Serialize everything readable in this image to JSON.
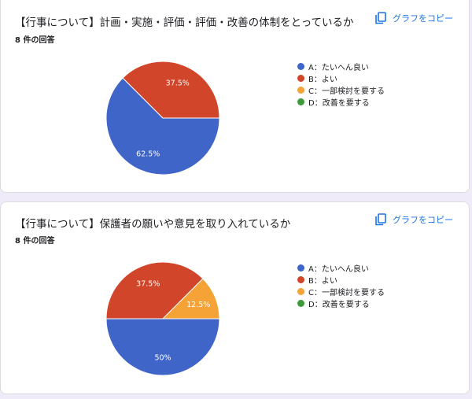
{
  "copy_label": "グラフをコピー",
  "legend_categories": [
    "A：たいへん良い",
    "B：よい",
    "C：一部検討を要する",
    "D：改善を要する"
  ],
  "legend_colors": [
    "#3f65c8",
    "#d1452a",
    "#f5a236",
    "#3f9a39"
  ],
  "questions": [
    {
      "title": "【行事について】計画・実施・評価・評価・改善の体制をとっているか",
      "response_count": "8 件の回答"
    },
    {
      "title": "【行事について】保護者の願いや意見を取り入れているか",
      "response_count": "8 件の回答"
    }
  ],
  "chart_data": [
    {
      "type": "pie",
      "categories": [
        "A：たいへん良い",
        "B：よい",
        "C：一部検討を要する",
        "D：改善を要する"
      ],
      "values": [
        62.5,
        37.5,
        0,
        0
      ],
      "labels": [
        "62.5%",
        "37.5%",
        "",
        ""
      ],
      "colors": [
        "#3f65c8",
        "#d1452a",
        "#f5a236",
        "#3f9a39"
      ],
      "legend": "right"
    },
    {
      "type": "pie",
      "categories": [
        "A：たいへん良い",
        "B：よい",
        "C：一部検討を要する",
        "D：改善を要する"
      ],
      "values": [
        50,
        37.5,
        12.5,
        0
      ],
      "labels": [
        "50%",
        "37.5%",
        "12.5%",
        ""
      ],
      "colors": [
        "#3f65c8",
        "#d1452a",
        "#f5a236",
        "#3f9a39"
      ],
      "legend": "right"
    }
  ]
}
